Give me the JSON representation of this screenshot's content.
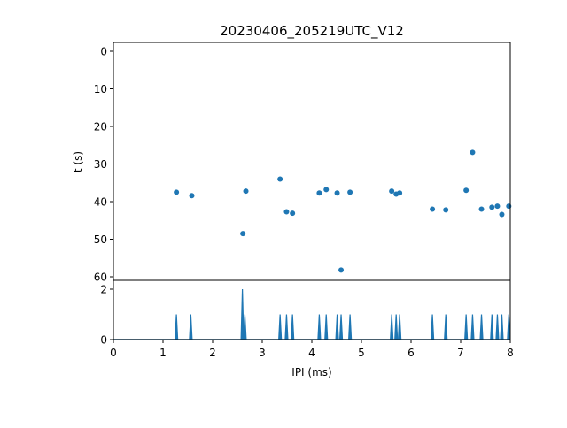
{
  "chart_data": [
    {
      "type": "scatter",
      "title": "20230406_205219UTC_V12",
      "xlabel": "",
      "ylabel": "t (s)",
      "xlim": [
        0,
        8
      ],
      "ylim": [
        61.5,
        -2.3
      ],
      "y_inverted": true,
      "yticks": [
        0,
        10,
        20,
        30,
        40,
        50,
        60
      ],
      "grid": false,
      "color": "#1f77b4",
      "points": [
        {
          "x": 1.27,
          "y": 37.5
        },
        {
          "x": 1.58,
          "y": 38.4
        },
        {
          "x": 2.61,
          "y": 48.5
        },
        {
          "x": 2.67,
          "y": 37.2
        },
        {
          "x": 3.36,
          "y": 34.0
        },
        {
          "x": 3.49,
          "y": 42.7
        },
        {
          "x": 3.61,
          "y": 43.1
        },
        {
          "x": 4.15,
          "y": 37.7
        },
        {
          "x": 4.29,
          "y": 36.8
        },
        {
          "x": 4.51,
          "y": 37.7
        },
        {
          "x": 4.59,
          "y": 58.2
        },
        {
          "x": 4.77,
          "y": 37.5
        },
        {
          "x": 5.61,
          "y": 37.2
        },
        {
          "x": 5.7,
          "y": 38.0
        },
        {
          "x": 5.77,
          "y": 37.7
        },
        {
          "x": 6.43,
          "y": 42.0
        },
        {
          "x": 6.7,
          "y": 42.2
        },
        {
          "x": 7.11,
          "y": 37.0
        },
        {
          "x": 7.24,
          "y": 26.9
        },
        {
          "x": 7.42,
          "y": 42.0
        },
        {
          "x": 7.63,
          "y": 41.5
        },
        {
          "x": 7.74,
          "y": 41.2
        },
        {
          "x": 7.83,
          "y": 43.4
        },
        {
          "x": 7.97,
          "y": 41.2
        }
      ]
    },
    {
      "type": "bar",
      "xlabel": "IPI (ms)",
      "ylabel": "",
      "xlim": [
        0,
        8
      ],
      "ylim": [
        0,
        2.1
      ],
      "xticks": [
        0,
        1,
        2,
        3,
        4,
        5,
        6,
        7,
        8
      ],
      "yticks": [
        0,
        2
      ],
      "color": "#1f77b4",
      "bins": [
        {
          "x": 1.27,
          "count": 1
        },
        {
          "x": 1.56,
          "count": 1
        },
        {
          "x": 2.6,
          "count": 2
        },
        {
          "x": 2.65,
          "count": 1
        },
        {
          "x": 3.36,
          "count": 1
        },
        {
          "x": 3.49,
          "count": 1
        },
        {
          "x": 3.61,
          "count": 1
        },
        {
          "x": 4.15,
          "count": 1
        },
        {
          "x": 4.29,
          "count": 1
        },
        {
          "x": 4.51,
          "count": 1
        },
        {
          "x": 4.59,
          "count": 1
        },
        {
          "x": 4.77,
          "count": 1
        },
        {
          "x": 5.61,
          "count": 1
        },
        {
          "x": 5.7,
          "count": 1
        },
        {
          "x": 5.77,
          "count": 1
        },
        {
          "x": 6.43,
          "count": 1
        },
        {
          "x": 6.7,
          "count": 1
        },
        {
          "x": 7.11,
          "count": 1
        },
        {
          "x": 7.24,
          "count": 1
        },
        {
          "x": 7.42,
          "count": 1
        },
        {
          "x": 7.63,
          "count": 1
        },
        {
          "x": 7.74,
          "count": 1
        },
        {
          "x": 7.83,
          "count": 1
        },
        {
          "x": 7.97,
          "count": 1
        }
      ]
    }
  ]
}
